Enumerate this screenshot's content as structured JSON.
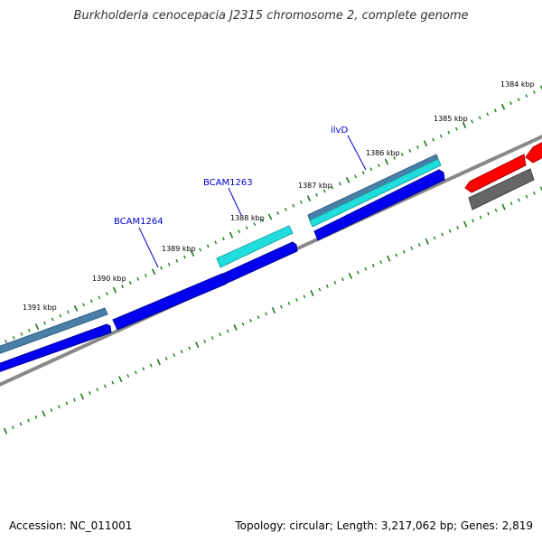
{
  "title": "Burkholderia cenocepacia J2315 chromosome 2, complete genome",
  "footer": {
    "accession_label": "Accession: NC_011001",
    "summary": "Topology: circular; Length: 3,217,062 bp; Genes: 2,819"
  },
  "scale_labels": [
    "1384 kbp",
    "1385 kbp",
    "1386 kbp",
    "1387 kbp",
    "1388 kbp",
    "1389 kbp",
    "1390 kbp",
    "1391 kbp"
  ],
  "gene_labels": [
    {
      "id": "ilvD",
      "text": "ilvD"
    },
    {
      "id": "bcam1263",
      "text": "BCAM1263"
    },
    {
      "id": "bcam1264",
      "text": "BCAM1264"
    }
  ],
  "colors": {
    "cds_forward": "#0000ee",
    "cds_reverse": "#ff0000",
    "gene_steel": "#4a7fa8",
    "gene_cyan": "#22dddd",
    "backbone": "#888888",
    "reverse_gray": "#666666",
    "tick": "#1a7a1a",
    "label_blue": "#0000cc"
  }
}
